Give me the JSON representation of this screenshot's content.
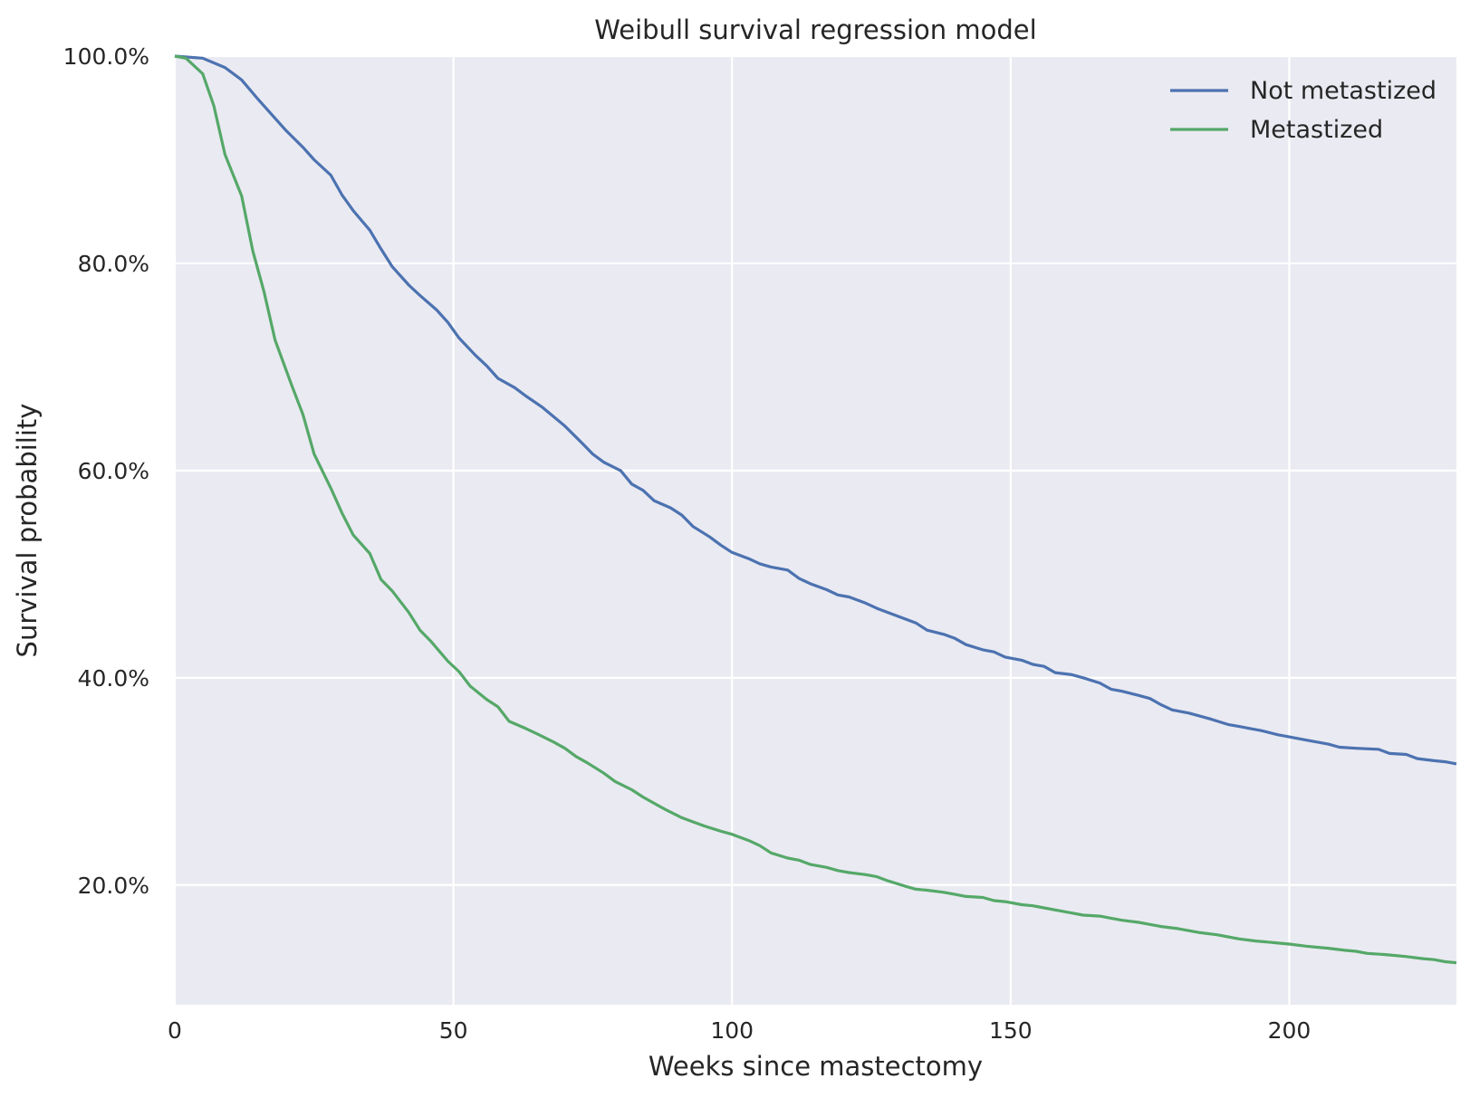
{
  "chart_data": {
    "type": "line",
    "title": "Weibull survival regression model",
    "xlabel": "Weeks since mastectomy",
    "ylabel": "Survival probability",
    "xlim": [
      0,
      230
    ],
    "ylim": [
      0.0845,
      1.0
    ],
    "x_ticks": [
      0,
      50,
      100,
      150,
      200
    ],
    "x_tick_labels": [
      "0",
      "50",
      "100",
      "150",
      "200"
    ],
    "y_ticks": [
      0.2,
      0.4,
      0.6,
      0.8,
      1.0
    ],
    "y_tick_labels": [
      "20.0%",
      "40.0%",
      "60.0%",
      "80.0%",
      "100.0%"
    ],
    "grid": true,
    "legend_position": "top-right",
    "background": "#eaeaf2",
    "series": [
      {
        "name": "Not metastized",
        "color": "#4c72b0",
        "points": [
          [
            0,
            1.0
          ],
          [
            5,
            0.998
          ],
          [
            9,
            0.989
          ],
          [
            12,
            0.977
          ],
          [
            15,
            0.958
          ],
          [
            18,
            0.94
          ],
          [
            20,
            0.928
          ],
          [
            23,
            0.912
          ],
          [
            25,
            0.9
          ],
          [
            28,
            0.885
          ],
          [
            30,
            0.866
          ],
          [
            32,
            0.851
          ],
          [
            35,
            0.832
          ],
          [
            37,
            0.814
          ],
          [
            39,
            0.797
          ],
          [
            42,
            0.779
          ],
          [
            44,
            0.769
          ],
          [
            47,
            0.755
          ],
          [
            49,
            0.743
          ],
          [
            51,
            0.728
          ],
          [
            54,
            0.711
          ],
          [
            56,
            0.701
          ],
          [
            58,
            0.689
          ],
          [
            61,
            0.68
          ],
          [
            63,
            0.672
          ],
          [
            66,
            0.661
          ],
          [
            68,
            0.652
          ],
          [
            70,
            0.643
          ],
          [
            73,
            0.627
          ],
          [
            75,
            0.616
          ],
          [
            77,
            0.608
          ],
          [
            80,
            0.6
          ],
          [
            82,
            0.587
          ],
          [
            84,
            0.581
          ],
          [
            86,
            0.571
          ],
          [
            89,
            0.564
          ],
          [
            91,
            0.557
          ],
          [
            93,
            0.546
          ],
          [
            96,
            0.536
          ],
          [
            98,
            0.528
          ],
          [
            100,
            0.521
          ],
          [
            103,
            0.515
          ],
          [
            105,
            0.51
          ],
          [
            107,
            0.507
          ],
          [
            110,
            0.504
          ],
          [
            112,
            0.496
          ],
          [
            114,
            0.491
          ],
          [
            117,
            0.485
          ],
          [
            119,
            0.48
          ],
          [
            121,
            0.478
          ],
          [
            124,
            0.472
          ],
          [
            126,
            0.467
          ],
          [
            128,
            0.463
          ],
          [
            131,
            0.457
          ],
          [
            133,
            0.453
          ],
          [
            135,
            0.446
          ],
          [
            138,
            0.442
          ],
          [
            140,
            0.438
          ],
          [
            142,
            0.432
          ],
          [
            145,
            0.427
          ],
          [
            147,
            0.425
          ],
          [
            149,
            0.42
          ],
          [
            152,
            0.417
          ],
          [
            154,
            0.413
          ],
          [
            156,
            0.411
          ],
          [
            158,
            0.405
          ],
          [
            161,
            0.403
          ],
          [
            163,
            0.4
          ],
          [
            166,
            0.395
          ],
          [
            168,
            0.389
          ],
          [
            170,
            0.387
          ],
          [
            173,
            0.383
          ],
          [
            175,
            0.38
          ],
          [
            177,
            0.374
          ],
          [
            179,
            0.369
          ],
          [
            182,
            0.366
          ],
          [
            184,
            0.363
          ],
          [
            186,
            0.36
          ],
          [
            189,
            0.355
          ],
          [
            191,
            0.353
          ],
          [
            193,
            0.351
          ],
          [
            195,
            0.349
          ],
          [
            198,
            0.345
          ],
          [
            200,
            0.343
          ],
          [
            202,
            0.341
          ],
          [
            205,
            0.338
          ],
          [
            207,
            0.336
          ],
          [
            209,
            0.333
          ],
          [
            212,
            0.332
          ],
          [
            216,
            0.331
          ],
          [
            218,
            0.327
          ],
          [
            221,
            0.326
          ],
          [
            223,
            0.322
          ],
          [
            226,
            0.32
          ],
          [
            228,
            0.319
          ],
          [
            230,
            0.317
          ]
        ]
      },
      {
        "name": "Metastized",
        "color": "#55a868",
        "points": [
          [
            0,
            1.0
          ],
          [
            2,
            0.998
          ],
          [
            5,
            0.983
          ],
          [
            7,
            0.952
          ],
          [
            9,
            0.905
          ],
          [
            12,
            0.865
          ],
          [
            14,
            0.812
          ],
          [
            16,
            0.773
          ],
          [
            18,
            0.726
          ],
          [
            21,
            0.682
          ],
          [
            23,
            0.654
          ],
          [
            25,
            0.616
          ],
          [
            28,
            0.583
          ],
          [
            30,
            0.559
          ],
          [
            32,
            0.538
          ],
          [
            35,
            0.52
          ],
          [
            37,
            0.495
          ],
          [
            39,
            0.484
          ],
          [
            42,
            0.463
          ],
          [
            44,
            0.446
          ],
          [
            46,
            0.435
          ],
          [
            49,
            0.416
          ],
          [
            51,
            0.406
          ],
          [
            53,
            0.392
          ],
          [
            56,
            0.379
          ],
          [
            58,
            0.372
          ],
          [
            60,
            0.358
          ],
          [
            63,
            0.351
          ],
          [
            65,
            0.346
          ],
          [
            68,
            0.338
          ],
          [
            70,
            0.332
          ],
          [
            72,
            0.324
          ],
          [
            74,
            0.318
          ],
          [
            77,
            0.308
          ],
          [
            79,
            0.3
          ],
          [
            82,
            0.292
          ],
          [
            84,
            0.285
          ],
          [
            86,
            0.279
          ],
          [
            88,
            0.273
          ],
          [
            91,
            0.265
          ],
          [
            93,
            0.261
          ],
          [
            95,
            0.257
          ],
          [
            98,
            0.252
          ],
          [
            100,
            0.249
          ],
          [
            103,
            0.243
          ],
          [
            105,
            0.238
          ],
          [
            107,
            0.231
          ],
          [
            110,
            0.226
          ],
          [
            112,
            0.224
          ],
          [
            114,
            0.22
          ],
          [
            117,
            0.217
          ],
          [
            119,
            0.214
          ],
          [
            121,
            0.212
          ],
          [
            124,
            0.21
          ],
          [
            126,
            0.208
          ],
          [
            128,
            0.204
          ],
          [
            131,
            0.199
          ],
          [
            133,
            0.196
          ],
          [
            135,
            0.195
          ],
          [
            138,
            0.193
          ],
          [
            140,
            0.191
          ],
          [
            142,
            0.189
          ],
          [
            145,
            0.188
          ],
          [
            147,
            0.185
          ],
          [
            149,
            0.184
          ],
          [
            152,
            0.181
          ],
          [
            154,
            0.18
          ],
          [
            156,
            0.178
          ],
          [
            159,
            0.175
          ],
          [
            161,
            0.173
          ],
          [
            163,
            0.171
          ],
          [
            166,
            0.17
          ],
          [
            168,
            0.168
          ],
          [
            170,
            0.166
          ],
          [
            173,
            0.164
          ],
          [
            175,
            0.162
          ],
          [
            177,
            0.16
          ],
          [
            180,
            0.158
          ],
          [
            182,
            0.156
          ],
          [
            184,
            0.154
          ],
          [
            187,
            0.152
          ],
          [
            189,
            0.15
          ],
          [
            191,
            0.148
          ],
          [
            194,
            0.146
          ],
          [
            196,
            0.145
          ],
          [
            198,
            0.144
          ],
          [
            200,
            0.143
          ],
          [
            203,
            0.141
          ],
          [
            205,
            0.14
          ],
          [
            207,
            0.139
          ],
          [
            210,
            0.137
          ],
          [
            212,
            0.136
          ],
          [
            214,
            0.134
          ],
          [
            217,
            0.133
          ],
          [
            219,
            0.132
          ],
          [
            221,
            0.131
          ],
          [
            224,
            0.129
          ],
          [
            226,
            0.128
          ],
          [
            228,
            0.126
          ],
          [
            230,
            0.125
          ]
        ]
      }
    ]
  }
}
